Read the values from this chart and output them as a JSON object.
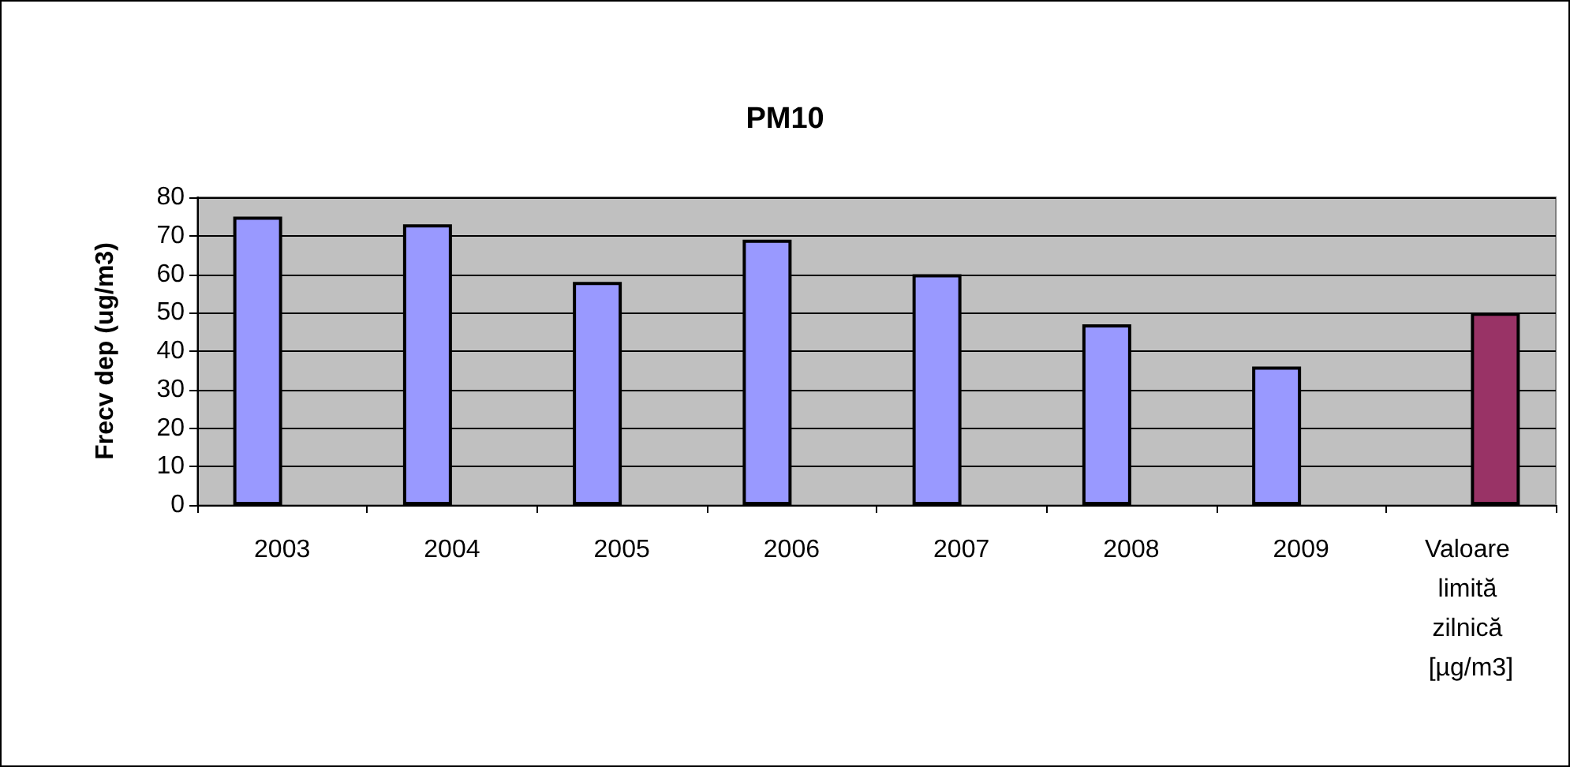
{
  "chart_data": {
    "type": "bar",
    "title": "PM10",
    "ylabel": "Frecv dep (ug/m3)",
    "categories": [
      "2003",
      "2004",
      "2005",
      "2006",
      "2007",
      "2008",
      "2009",
      "Valoare limită zilnică [µg/m3]"
    ],
    "series": [
      {
        "color": "#9999ff",
        "values": [
          75,
          73,
          58,
          69,
          60,
          47,
          36,
          null
        ]
      },
      {
        "color": "#993366",
        "values": [
          null,
          null,
          null,
          null,
          null,
          null,
          null,
          50
        ]
      }
    ],
    "ylim": [
      0,
      80
    ],
    "yticks": [
      0,
      10,
      20,
      30,
      40,
      50,
      60,
      70,
      80
    ],
    "grid": "y"
  }
}
